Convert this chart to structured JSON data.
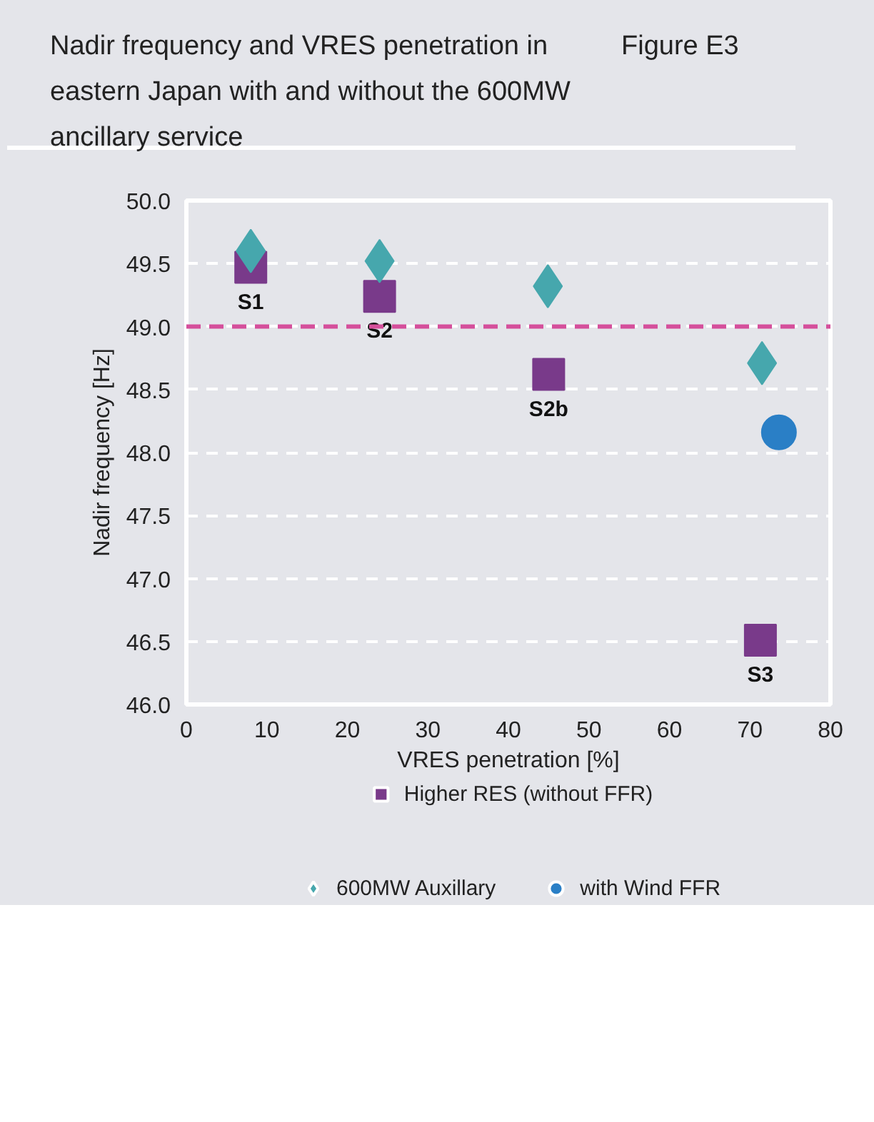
{
  "chart_data": {
    "type": "scatter",
    "title": "Nadir frequency and VRES penetration in eastern Japan with and without the 600MW ancillary service",
    "xlabel": "VRES penetration [%]",
    "ylabel": "Nadir frequency [Hz]",
    "xlim": [
      0,
      80
    ],
    "xticks": [
      0,
      10,
      20,
      30,
      40,
      50,
      60,
      70,
      80
    ],
    "ylim": [
      46.0,
      50.0
    ],
    "yticks": [
      {
        "value": 46,
        "label": "46.0"
      },
      {
        "value": 46.5,
        "label": "46.5"
      },
      {
        "value": 47,
        "label": "47.0"
      },
      {
        "value": 47.5,
        "label": "47.5"
      },
      {
        "value": 48,
        "label": "48.0"
      },
      {
        "value": 48.5,
        "label": "48.5"
      },
      {
        "value": 49,
        "label": "49.0"
      },
      {
        "value": 49.5,
        "label": "49.5"
      },
      {
        "value": 50,
        "label": "50.0"
      }
    ],
    "grid": "y",
    "legend": "bottom",
    "ref_lines": [
      {
        "axis": "y",
        "value": 49.0,
        "color": "#d54f9b",
        "line_style": "dashed"
      }
    ],
    "series": [
      {
        "name": "Higher RES (without FFR)",
        "color": "#793a8a",
        "marker": "square",
        "x": [
          8,
          24,
          45,
          71.3
        ],
        "values": [
          49.47,
          49.24,
          48.62,
          46.51
        ]
      },
      {
        "name": "600MW Auxillary",
        "color": "#46a7ad",
        "marker": "diamond",
        "x": [
          8,
          24,
          44.9,
          71.5
        ],
        "values": [
          49.6,
          49.52,
          49.32,
          48.71
        ]
      },
      {
        "name": "with Wind FFR",
        "color": "#2a7fc6",
        "marker": "circle",
        "x": [
          73.6
        ],
        "values": [
          48.16
        ]
      }
    ],
    "annotations": [
      "Figure E3",
      {
        "text": "S1",
        "x": 8,
        "y": 49.47
      },
      {
        "text": "S2",
        "x": 24,
        "y": 49.24
      },
      {
        "text": "S2b",
        "x": 45,
        "y": 48.62
      },
      {
        "text": "S3",
        "x": 71.3,
        "y": 46.51
      }
    ]
  }
}
